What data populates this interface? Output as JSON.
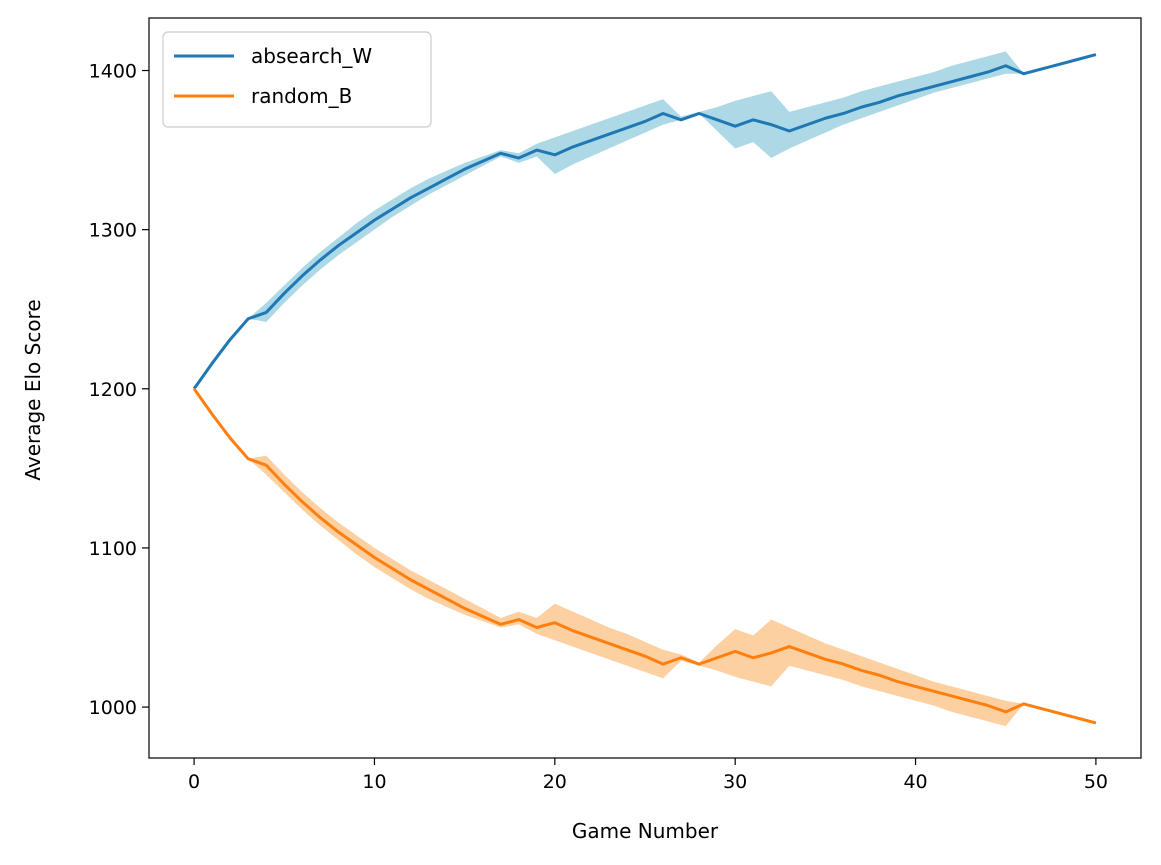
{
  "chart_data": {
    "type": "line",
    "title": "",
    "xlabel": "Game Number",
    "ylabel": "Average Elo Score",
    "xlim": [
      -2.5,
      52.5
    ],
    "ylim": [
      968,
      1433
    ],
    "xticks": [
      0,
      10,
      20,
      30,
      40,
      50
    ],
    "yticks": [
      1000,
      1100,
      1200,
      1300,
      1400
    ],
    "grid": false,
    "legend_position": "top-left",
    "series": [
      {
        "name": "absearch_W",
        "color": "#1f77b4",
        "band_color": "#add8e6",
        "x": [
          0,
          1,
          2,
          3,
          4,
          5,
          6,
          7,
          8,
          9,
          10,
          11,
          12,
          13,
          14,
          15,
          16,
          17,
          18,
          19,
          20,
          21,
          22,
          23,
          24,
          25,
          26,
          27,
          28,
          29,
          30,
          31,
          32,
          33,
          34,
          35,
          36,
          37,
          38,
          39,
          40,
          41,
          42,
          43,
          44,
          45,
          46,
          47,
          48,
          49,
          50
        ],
        "y": [
          1200,
          1216,
          1231,
          1244,
          1248,
          1260,
          1271,
          1281,
          1290,
          1298,
          1306,
          1313,
          1320,
          1326,
          1332,
          1338,
          1343,
          1348,
          1345,
          1350,
          1347,
          1352,
          1356,
          1360,
          1364,
          1368,
          1373,
          1369,
          1373,
          1369,
          1365,
          1369,
          1366,
          1362,
          1366,
          1370,
          1373,
          1377,
          1380,
          1384,
          1387,
          1390,
          1393,
          1396,
          1399,
          1403,
          1398,
          1401,
          1404,
          1407,
          1410
        ],
        "lower": [
          1200,
          1216,
          1231,
          1244,
          1242,
          1254,
          1265,
          1275,
          1284,
          1292,
          1300,
          1308,
          1315,
          1322,
          1328,
          1334,
          1340,
          1346,
          1342,
          1346,
          1335,
          1341,
          1346,
          1351,
          1356,
          1361,
          1366,
          1369,
          1373,
          1362,
          1351,
          1355,
          1345,
          1351,
          1356,
          1361,
          1366,
          1370,
          1374,
          1378,
          1382,
          1386,
          1389,
          1392,
          1395,
          1398,
          1398,
          1401,
          1404,
          1407,
          1410
        ],
        "upper": [
          1200,
          1216,
          1231,
          1244,
          1254,
          1265,
          1276,
          1286,
          1295,
          1304,
          1312,
          1319,
          1326,
          1332,
          1337,
          1342,
          1346,
          1350,
          1348,
          1354,
          1358,
          1362,
          1366,
          1370,
          1374,
          1378,
          1382,
          1371,
          1374,
          1377,
          1381,
          1384,
          1387,
          1374,
          1377,
          1380,
          1383,
          1387,
          1390,
          1393,
          1396,
          1399,
          1403,
          1406,
          1409,
          1412,
          1398,
          1401,
          1404,
          1407,
          1410
        ]
      },
      {
        "name": "random_B",
        "color": "#ff7f0e",
        "band_color": "#fdd0a2",
        "x": [
          0,
          1,
          2,
          3,
          4,
          5,
          6,
          7,
          8,
          9,
          10,
          11,
          12,
          13,
          14,
          15,
          16,
          17,
          18,
          19,
          20,
          21,
          22,
          23,
          24,
          25,
          26,
          27,
          28,
          29,
          30,
          31,
          32,
          33,
          34,
          35,
          36,
          37,
          38,
          39,
          40,
          41,
          42,
          43,
          44,
          45,
          46,
          47,
          48,
          49,
          50
        ],
        "y": [
          1200,
          1184,
          1169,
          1156,
          1152,
          1140,
          1129,
          1119,
          1110,
          1102,
          1094,
          1087,
          1080,
          1074,
          1068,
          1062,
          1057,
          1052,
          1055,
          1050,
          1053,
          1048,
          1044,
          1040,
          1036,
          1032,
          1027,
          1031,
          1027,
          1031,
          1035,
          1031,
          1034,
          1038,
          1034,
          1030,
          1027,
          1023,
          1020,
          1016,
          1013,
          1010,
          1007,
          1004,
          1001,
          997,
          1002,
          999,
          996,
          993,
          990
        ],
        "lower": [
          1200,
          1184,
          1169,
          1156,
          1146,
          1135,
          1124,
          1114,
          1105,
          1096,
          1088,
          1081,
          1074,
          1068,
          1063,
          1058,
          1054,
          1050,
          1052,
          1046,
          1042,
          1038,
          1034,
          1030,
          1026,
          1022,
          1018,
          1029,
          1026,
          1023,
          1019,
          1016,
          1013,
          1026,
          1023,
          1020,
          1017,
          1013,
          1010,
          1007,
          1004,
          1001,
          997,
          994,
          991,
          988,
          1002,
          999,
          996,
          993,
          990
        ],
        "upper": [
          1200,
          1184,
          1169,
          1156,
          1158,
          1146,
          1135,
          1125,
          1116,
          1108,
          1100,
          1093,
          1086,
          1080,
          1074,
          1068,
          1062,
          1056,
          1060,
          1056,
          1065,
          1060,
          1055,
          1050,
          1046,
          1041,
          1036,
          1033,
          1028,
          1039,
          1049,
          1045,
          1055,
          1050,
          1045,
          1040,
          1036,
          1032,
          1028,
          1024,
          1020,
          1016,
          1013,
          1010,
          1007,
          1004,
          1002,
          999,
          996,
          993,
          990
        ]
      }
    ]
  }
}
